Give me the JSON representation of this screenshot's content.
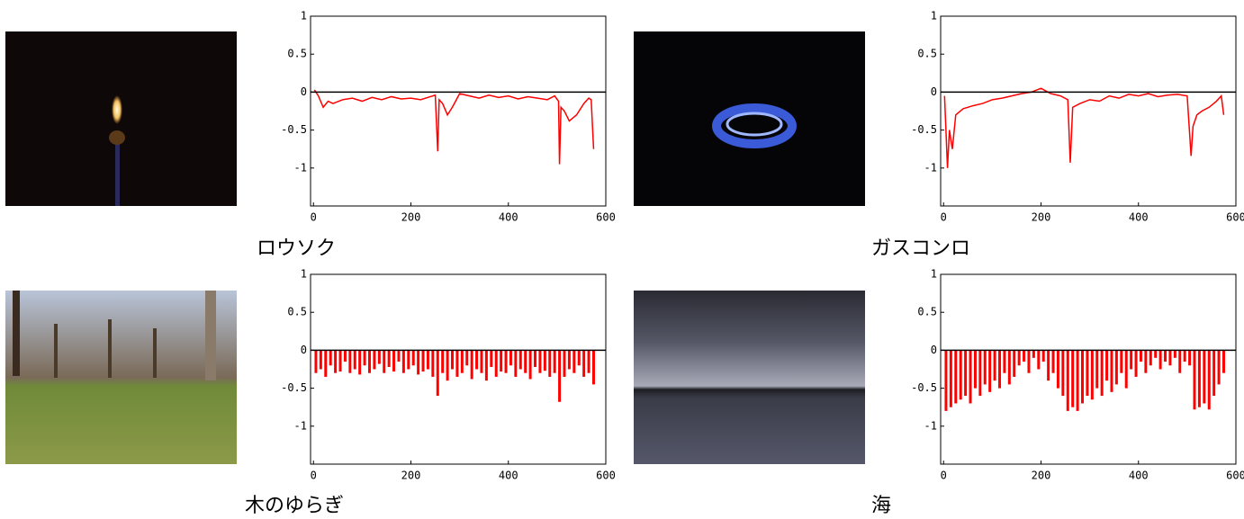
{
  "chart_data": [
    {
      "type": "line",
      "title": "ロウソク",
      "color": "#ff0000",
      "x": [
        2,
        10,
        20,
        30,
        40,
        60,
        80,
        100,
        120,
        140,
        160,
        180,
        200,
        220,
        240,
        250,
        255,
        258,
        265,
        275,
        285,
        300,
        320,
        340,
        360,
        380,
        400,
        420,
        440,
        460,
        480,
        495,
        503,
        505,
        508,
        515,
        525,
        540,
        555,
        565,
        570,
        575
      ],
      "values": [
        0.03,
        -0.05,
        -0.2,
        -0.12,
        -0.15,
        -0.1,
        -0.08,
        -0.12,
        -0.07,
        -0.1,
        -0.06,
        -0.09,
        -0.08,
        -0.1,
        -0.06,
        -0.04,
        -0.78,
        -0.1,
        -0.15,
        -0.3,
        -0.2,
        -0.02,
        -0.05,
        -0.08,
        -0.04,
        -0.07,
        -0.05,
        -0.09,
        -0.06,
        -0.08,
        -0.1,
        -0.05,
        -0.12,
        -0.95,
        -0.2,
        -0.25,
        -0.38,
        -0.3,
        -0.15,
        -0.08,
        -0.1,
        -0.75
      ],
      "xlim": [
        -6,
        600
      ],
      "ylim": [
        -1.5,
        1
      ],
      "xticks": [
        0,
        200,
        400,
        600
      ],
      "yticks": [
        1,
        0.5,
        0,
        -0.5,
        -1
      ]
    },
    {
      "type": "line",
      "title": "ガスコンロ",
      "color": "#ff0000",
      "x": [
        2,
        8,
        12,
        18,
        25,
        40,
        60,
        80,
        100,
        120,
        140,
        160,
        180,
        200,
        220,
        240,
        255,
        260,
        265,
        280,
        300,
        320,
        340,
        360,
        380,
        400,
        420,
        440,
        460,
        480,
        500,
        508,
        512,
        520,
        530,
        545,
        560,
        570,
        575
      ],
      "values": [
        -0.05,
        -1.0,
        -0.5,
        -0.75,
        -0.3,
        -0.22,
        -0.18,
        -0.15,
        -0.1,
        -0.08,
        -0.05,
        -0.02,
        0.0,
        0.05,
        -0.02,
        -0.05,
        -0.1,
        -0.93,
        -0.2,
        -0.15,
        -0.1,
        -0.12,
        -0.05,
        -0.08,
        -0.03,
        -0.05,
        -0.02,
        -0.06,
        -0.04,
        -0.03,
        -0.05,
        -0.84,
        -0.45,
        -0.3,
        -0.25,
        -0.2,
        -0.12,
        -0.05,
        -0.3
      ],
      "xlim": [
        -6,
        600
      ],
      "ylim": [
        -1.5,
        1
      ],
      "xticks": [
        0,
        200,
        400,
        600
      ],
      "yticks": [
        1,
        0.5,
        0,
        -0.5,
        -1
      ]
    },
    {
      "type": "stem",
      "title": "木のゆらぎ",
      "color": "#ff0000",
      "x": [
        5,
        15,
        25,
        35,
        45,
        55,
        65,
        75,
        85,
        95,
        105,
        115,
        125,
        135,
        145,
        155,
        165,
        175,
        185,
        195,
        205,
        215,
        225,
        235,
        245,
        255,
        265,
        275,
        285,
        295,
        305,
        315,
        325,
        335,
        345,
        355,
        365,
        375,
        385,
        395,
        405,
        415,
        425,
        435,
        445,
        455,
        465,
        475,
        485,
        495,
        505,
        515,
        525,
        535,
        545,
        555,
        565,
        575
      ],
      "values": [
        -0.3,
        -0.25,
        -0.35,
        -0.2,
        -0.3,
        -0.28,
        -0.15,
        -0.3,
        -0.25,
        -0.32,
        -0.2,
        -0.3,
        -0.25,
        -0.18,
        -0.3,
        -0.22,
        -0.28,
        -0.15,
        -0.3,
        -0.25,
        -0.2,
        -0.32,
        -0.28,
        -0.25,
        -0.35,
        -0.6,
        -0.3,
        -0.4,
        -0.25,
        -0.35,
        -0.3,
        -0.2,
        -0.38,
        -0.25,
        -0.3,
        -0.4,
        -0.22,
        -0.35,
        -0.28,
        -0.3,
        -0.2,
        -0.35,
        -0.25,
        -0.3,
        -0.38,
        -0.22,
        -0.3,
        -0.27,
        -0.35,
        -0.3,
        -0.68,
        -0.35,
        -0.25,
        -0.3,
        -0.2,
        -0.35,
        -0.3,
        -0.45
      ],
      "xlim": [
        -6,
        600
      ],
      "ylim": [
        -1.5,
        1
      ],
      "xticks": [
        0,
        200,
        400,
        600
      ],
      "yticks": [
        1,
        0.5,
        0,
        -0.5,
        -1
      ]
    },
    {
      "type": "stem",
      "title": "海",
      "color": "#ff0000",
      "x": [
        5,
        15,
        25,
        35,
        45,
        55,
        65,
        75,
        85,
        95,
        105,
        115,
        125,
        135,
        145,
        155,
        165,
        175,
        185,
        195,
        205,
        215,
        225,
        235,
        245,
        255,
        265,
        275,
        285,
        295,
        305,
        315,
        325,
        335,
        345,
        355,
        365,
        375,
        385,
        395,
        405,
        415,
        425,
        435,
        445,
        455,
        465,
        475,
        485,
        495,
        505,
        515,
        525,
        535,
        545,
        555,
        565,
        575
      ],
      "values": [
        -0.8,
        -0.75,
        -0.7,
        -0.65,
        -0.6,
        -0.7,
        -0.5,
        -0.6,
        -0.45,
        -0.55,
        -0.4,
        -0.5,
        -0.3,
        -0.45,
        -0.35,
        -0.2,
        -0.15,
        -0.3,
        -0.1,
        -0.25,
        -0.15,
        -0.4,
        -0.3,
        -0.5,
        -0.6,
        -0.8,
        -0.75,
        -0.8,
        -0.7,
        -0.6,
        -0.65,
        -0.5,
        -0.6,
        -0.4,
        -0.55,
        -0.45,
        -0.3,
        -0.5,
        -0.25,
        -0.35,
        -0.15,
        -0.3,
        -0.2,
        -0.1,
        -0.25,
        -0.15,
        -0.2,
        -0.1,
        -0.3,
        -0.15,
        -0.2,
        -0.78,
        -0.75,
        -0.7,
        -0.78,
        -0.6,
        -0.45,
        -0.3
      ],
      "xlim": [
        -6,
        600
      ],
      "ylim": [
        -1.5,
        1
      ],
      "xticks": [
        0,
        200,
        400,
        600
      ],
      "yticks": [
        1,
        0.5,
        0,
        -0.5,
        -1
      ]
    }
  ]
}
